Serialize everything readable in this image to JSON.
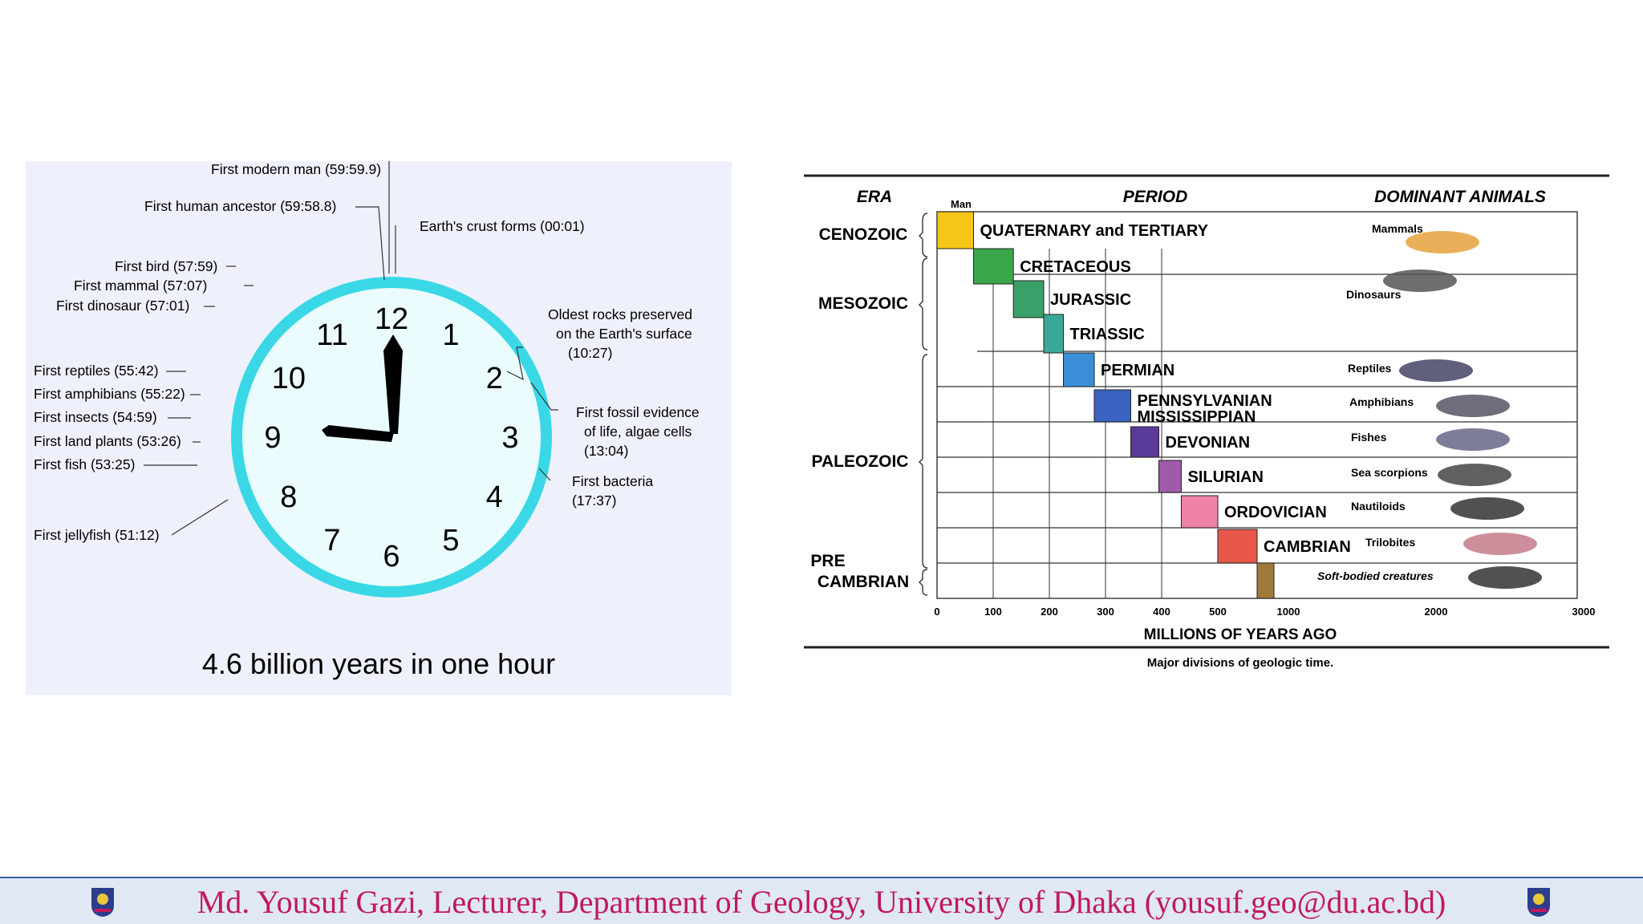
{
  "clock": {
    "caption": "4.6 billion years in one hour",
    "numerals": [
      "12",
      "1",
      "2",
      "3",
      "4",
      "5",
      "6",
      "7",
      "8",
      "9",
      "10",
      "11"
    ],
    "events": [
      {
        "label": "First modern man  (59:59.9)"
      },
      {
        "label": "First human ancestor  (59:58.8)"
      },
      {
        "label": "Earth's crust forms (00:01)"
      },
      {
        "label": "First bird  (57:59)"
      },
      {
        "label": "First mammal (57:07)"
      },
      {
        "label": "First dinosaur  (57:01)"
      },
      {
        "label": "First reptiles (55:42)"
      },
      {
        "label": "First amphibians (55:22)"
      },
      {
        "label": "First insects (54:59)"
      },
      {
        "label": "First land plants  (53:26)"
      },
      {
        "label": "First fish  (53:25)"
      },
      {
        "label": "First jellyfish  (51:12)"
      }
    ],
    "oldest_rocks": {
      "line1": "Oldest rocks preserved",
      "line2": "on the Earth's surface",
      "line3": "(10:27)"
    },
    "first_fossil": {
      "line1": "First  fossil evidence",
      "line2": "of life, algae cells",
      "line3": "(13:04)"
    },
    "first_bacteria": {
      "line1": "First  bacteria",
      "line2": "(17:37)"
    }
  },
  "geo": {
    "headers": {
      "era": "ERA",
      "man": "Man",
      "period": "PERIOD",
      "animals": "DOMINANT ANIMALS"
    },
    "eras": [
      "CENOZOIC",
      "MESOZOIC",
      "PALEOZOIC",
      "PRE",
      "CAMBRIAN"
    ],
    "periods": [
      {
        "name": "QUATERNARY and TERTIARY",
        "start_ma": 0,
        "end_ma": 65,
        "color": "#f5c518"
      },
      {
        "name": "CRETACEOUS",
        "start_ma": 65,
        "end_ma": 136,
        "color": "#3aa64a"
      },
      {
        "name": "JURASSIC",
        "start_ma": 136,
        "end_ma": 190,
        "color": "#3aa06a"
      },
      {
        "name": "TRIASSIC",
        "start_ma": 190,
        "end_ma": 225,
        "color": "#3aa898"
      },
      {
        "name": "PERMIAN",
        "start_ma": 225,
        "end_ma": 280,
        "color": "#3a8fd8"
      },
      {
        "name": "PENNSYLVANIAN",
        "name2": "MISSISSIPPIAN",
        "start_ma": 280,
        "end_ma": 345,
        "color": "#3a62c0"
      },
      {
        "name": "DEVONIAN",
        "start_ma": 345,
        "end_ma": 395,
        "color": "#5a3a98"
      },
      {
        "name": "SILURIAN",
        "start_ma": 395,
        "end_ma": 435,
        "color": "#a05aa8"
      },
      {
        "name": "ORDOVICIAN",
        "start_ma": 435,
        "end_ma": 500,
        "color": "#ee82a8"
      },
      {
        "name": "CAMBRIAN",
        "start_ma": 500,
        "end_ma": 570,
        "color": "#e8584a"
      },
      {
        "name": "",
        "start_ma": 570,
        "end_ma": 600,
        "color": "#a07a3a"
      }
    ],
    "animals": [
      "Mammals",
      "Dinosaurs",
      "Reptiles",
      "Amphibians",
      "Fishes",
      "Sea scorpions",
      "Nautiloids",
      "Trilobites",
      "Soft-bodied creatures"
    ],
    "axis_ticks": [
      "0",
      "100",
      "200",
      "300",
      "400",
      "500",
      "1000",
      "2000",
      "3000"
    ],
    "axis_title": "MILLIONS OF YEARS AGO",
    "caption": "Major divisions of geologic time."
  },
  "footer": {
    "text": "Md. Yousuf Gazi, Lecturer, Department of Geology, University of Dhaka (yousuf.geo@du.ac.bd)"
  }
}
